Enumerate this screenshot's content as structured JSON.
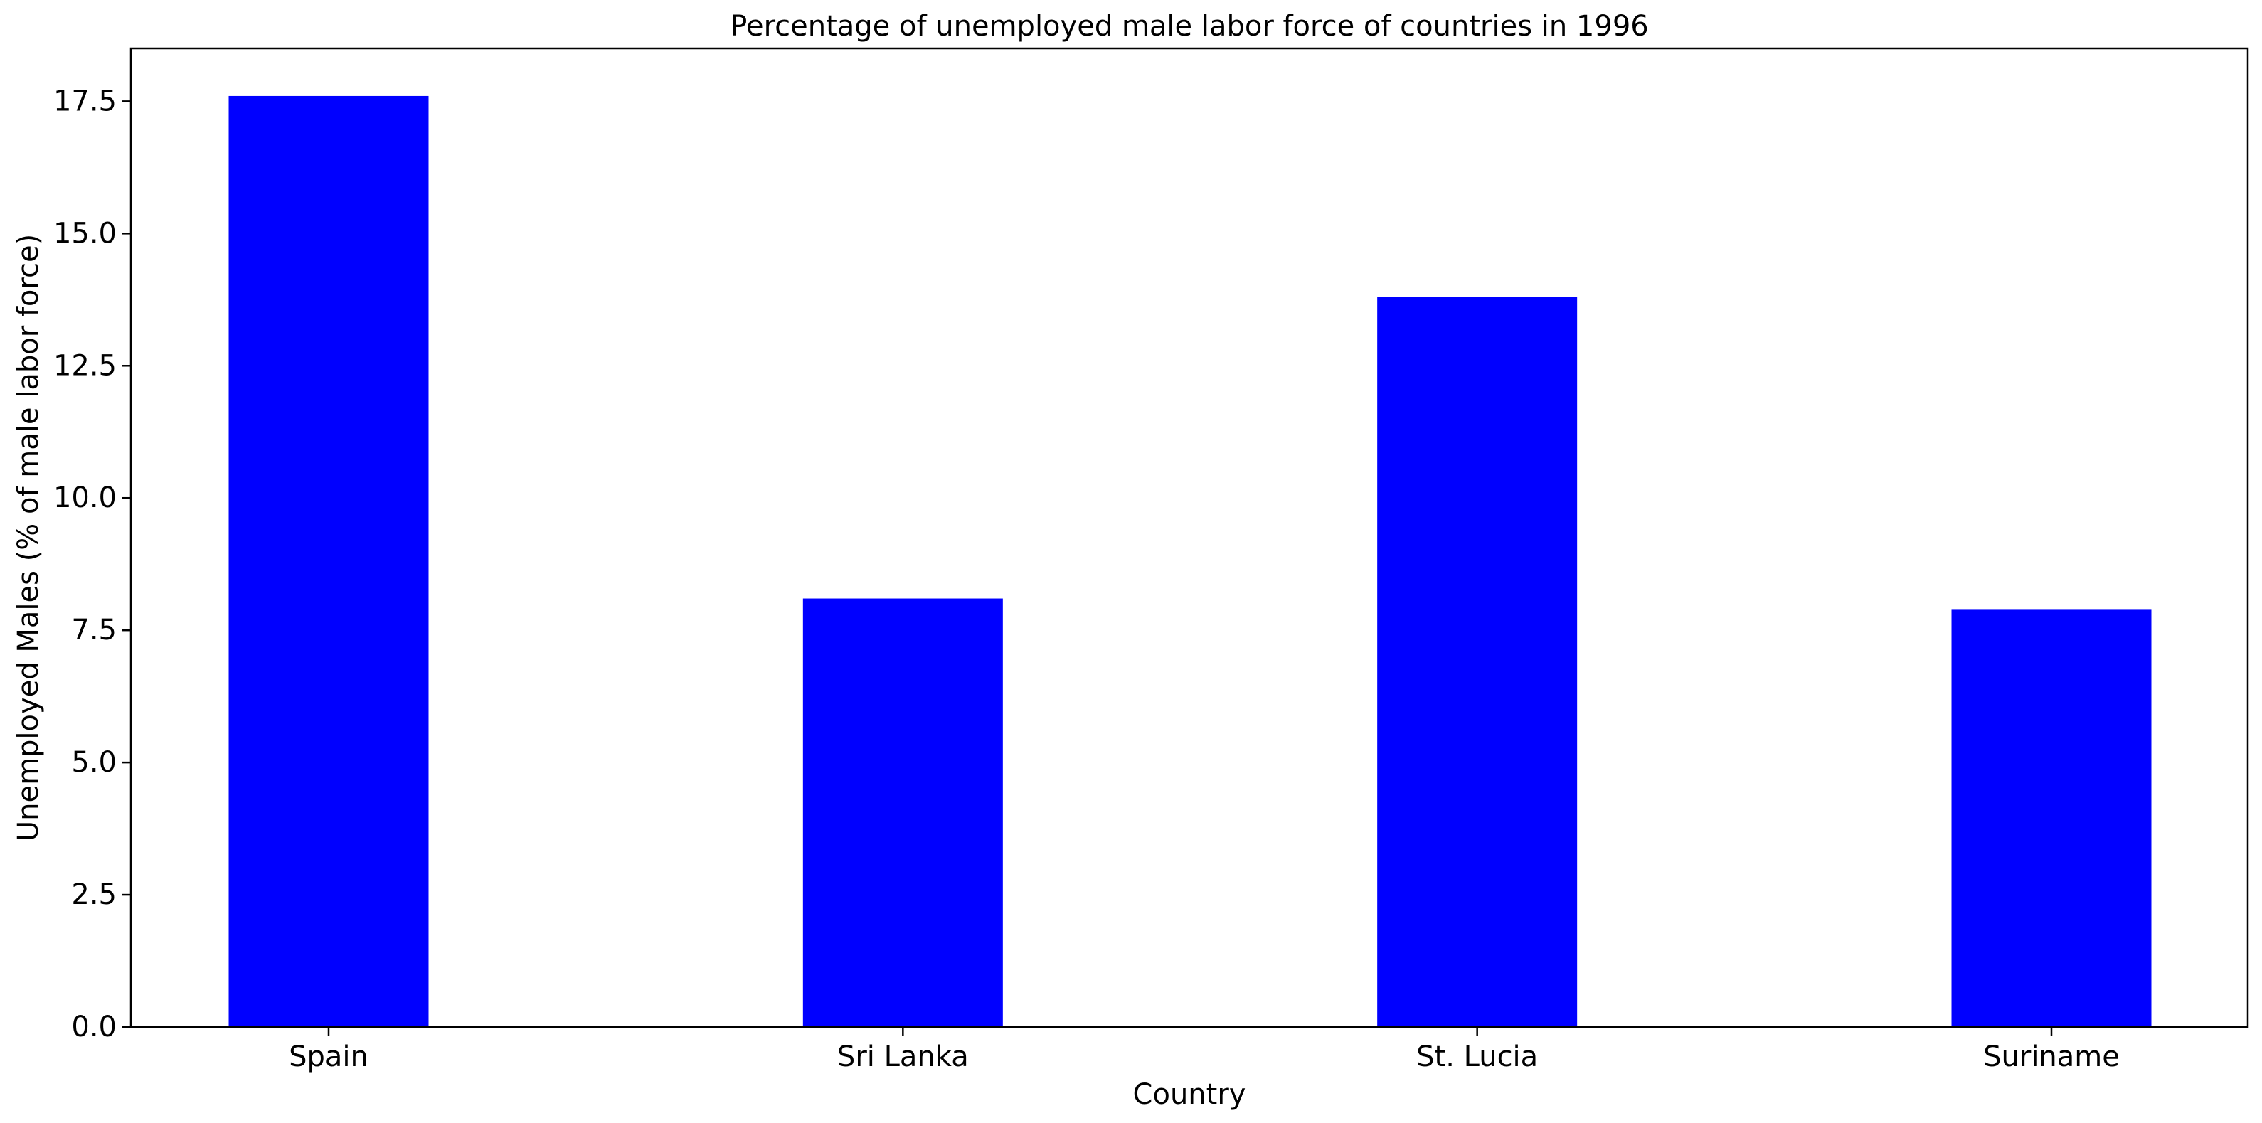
{
  "chart_data": {
    "type": "bar",
    "title": "Percentage of unemployed male labor force of countries in 1996",
    "xlabel": "Country",
    "ylabel": "Unemployed Males (% of male labor force)",
    "categories": [
      "Spain",
      "Sri Lanka",
      "St. Lucia",
      "Suriname"
    ],
    "values": [
      17.6,
      8.1,
      13.8,
      7.9
    ],
    "ylim": [
      0,
      18.5
    ],
    "yticks": [
      0.0,
      2.5,
      5.0,
      7.5,
      10.0,
      12.5,
      15.0,
      17.5
    ],
    "ytick_labels": [
      "0.0",
      "2.5",
      "5.0",
      "7.5",
      "10.0",
      "12.5",
      "15.0",
      "17.5"
    ],
    "bar_color": "#0000ff",
    "grid": false,
    "legend": "none"
  }
}
